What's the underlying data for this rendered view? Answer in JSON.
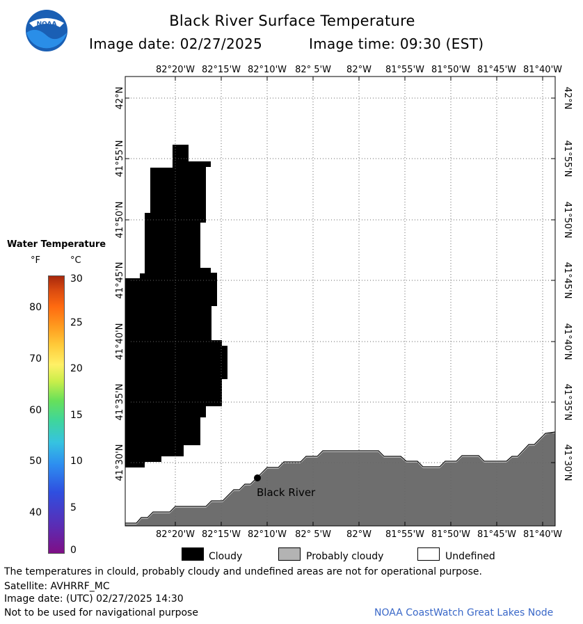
{
  "header": {
    "title": "Black River Surface Temperature",
    "image_date_text": "Image date: 02/27/2025",
    "image_time_text": "Image time: 09:30 (EST)",
    "logo_text": "NOAA"
  },
  "map": {
    "longitude_labels": [
      "82°20'W",
      "82°15'W",
      "82°10'W",
      "82° 5'W",
      "82°W",
      "81°55'W",
      "81°50'W",
      "81°45'W",
      "81°40'W"
    ],
    "latitude_labels": [
      "42°N",
      "41°55'N",
      "41°50'N",
      "41°45'N",
      "41°40'N",
      "41°35'N",
      "41°30'N"
    ],
    "place_label": "Black River",
    "colors": {
      "cloudy": "#000000",
      "probably_cloudy": "#6e6e6e",
      "grid": "#555555"
    }
  },
  "legend": {
    "title": "Water Temperature",
    "unit_f": "°F",
    "unit_c": "°C",
    "fahrenheit_ticks": [
      "80",
      "70",
      "60",
      "50",
      "40"
    ],
    "celsius_ticks": [
      "30",
      "25",
      "20",
      "15",
      "10",
      "5",
      "0"
    ],
    "key": {
      "cloudy": "Cloudy",
      "probably_cloudy": "Probably cloudy",
      "undefined": "Undefined"
    }
  },
  "footer": {
    "note": "The temperatures in clould, probably cloudy and undefined areas are not for operational purpose.",
    "satellite": "Satellite: AVHRRF_MC",
    "utc_date": "Image date: (UTC) 02/27/2025  14:30",
    "navigation": "Not to be used for navigational purpose",
    "credit": "NOAA CoastWatch Great Lakes Node"
  }
}
